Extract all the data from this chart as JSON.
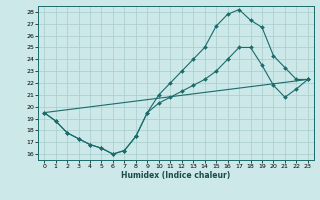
{
  "xlabel": "Humidex (Indice chaleur)",
  "bg_color": "#cce8e8",
  "grid_color": "#a8cccc",
  "line_color": "#1a6b6b",
  "xlim": [
    -0.5,
    23.5
  ],
  "ylim": [
    15.5,
    28.5
  ],
  "xticks": [
    0,
    1,
    2,
    3,
    4,
    5,
    6,
    7,
    8,
    9,
    10,
    11,
    12,
    13,
    14,
    15,
    16,
    17,
    18,
    19,
    20,
    21,
    22,
    23
  ],
  "yticks": [
    16,
    17,
    18,
    19,
    20,
    21,
    22,
    23,
    24,
    25,
    26,
    27,
    28
  ],
  "line1_x": [
    0,
    1,
    2,
    3,
    4,
    5,
    6,
    7,
    8,
    9,
    10,
    11,
    12,
    13,
    14,
    15,
    16,
    17,
    18,
    19,
    20,
    21,
    22,
    23
  ],
  "line1_y": [
    19.5,
    18.8,
    17.8,
    17.3,
    16.8,
    16.5,
    16.0,
    16.3,
    17.5,
    19.5,
    21.0,
    22.0,
    23.0,
    24.0,
    25.0,
    26.8,
    27.8,
    28.2,
    27.3,
    26.7,
    24.3,
    23.3,
    22.3,
    22.3
  ],
  "line2_x": [
    0,
    1,
    2,
    3,
    4,
    5,
    6,
    7,
    8,
    9,
    10,
    11,
    12,
    13,
    14,
    15,
    16,
    17,
    18,
    19,
    20,
    21,
    22,
    23
  ],
  "line2_y": [
    19.5,
    18.8,
    17.8,
    17.3,
    16.8,
    16.5,
    16.0,
    16.3,
    17.5,
    19.5,
    20.3,
    20.8,
    21.3,
    21.8,
    22.3,
    23.0,
    24.0,
    25.0,
    25.0,
    23.5,
    21.8,
    20.8,
    21.5,
    22.3
  ],
  "line3_x": [
    0,
    23
  ],
  "line3_y": [
    19.5,
    22.3
  ]
}
